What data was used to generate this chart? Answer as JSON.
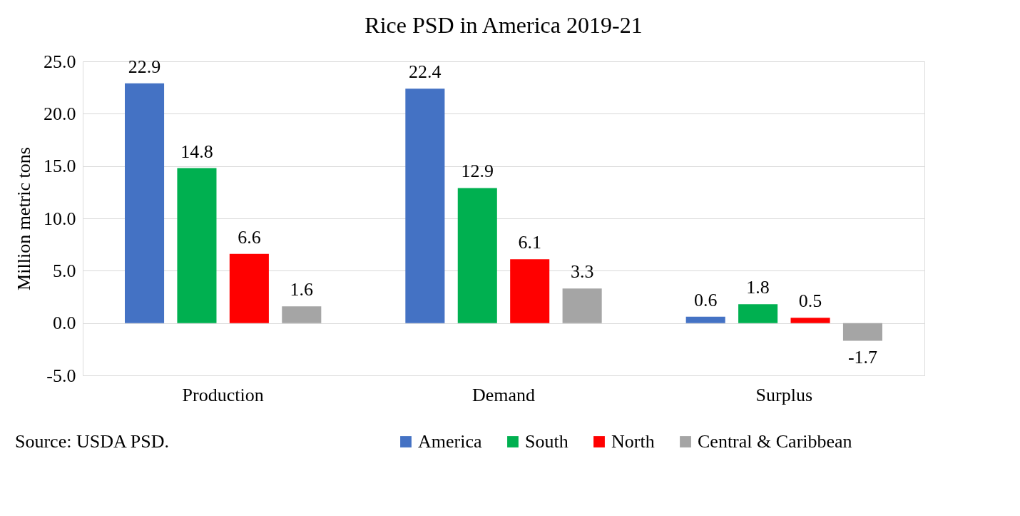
{
  "chart_data": {
    "type": "bar",
    "title": "Rice PSD in America 2019-21",
    "ylabel": "Million metric tons",
    "categories": [
      "Production",
      "Demand",
      "Surplus"
    ],
    "series": [
      {
        "name": "America",
        "color": "#4472c4",
        "values": [
          22.9,
          22.4,
          0.6
        ]
      },
      {
        "name": "South",
        "color": "#00b050",
        "values": [
          14.8,
          12.9,
          1.8
        ]
      },
      {
        "name": "North",
        "color": "#ff0000",
        "values": [
          6.6,
          6.1,
          0.5
        ]
      },
      {
        "name": "Central & Caribbean",
        "color": "#a5a5a5",
        "values": [
          1.6,
          3.3,
          -1.7
        ]
      }
    ],
    "ylim": [
      -5,
      25
    ],
    "yticks": [
      {
        "value": -5,
        "label": "-5.0"
      },
      {
        "value": 0,
        "label": "0.0"
      },
      {
        "value": 5,
        "label": "5.0"
      },
      {
        "value": 10,
        "label": "10.0"
      },
      {
        "value": 15,
        "label": "15.0"
      },
      {
        "value": 20,
        "label": "20.0"
      },
      {
        "value": 25,
        "label": "25.0"
      }
    ],
    "grid": "y",
    "data_labels": true,
    "legend": "bottom",
    "annotations": [
      "Source: USDA PSD."
    ]
  }
}
